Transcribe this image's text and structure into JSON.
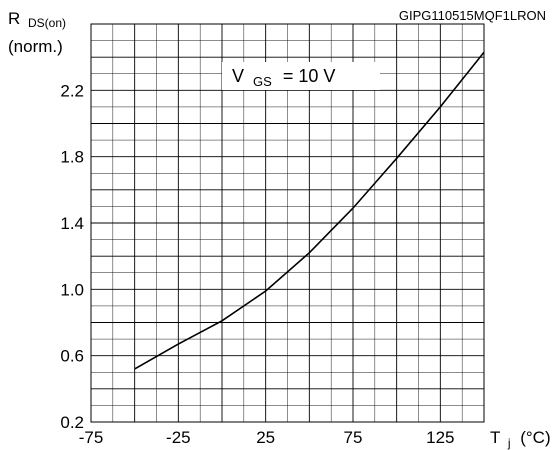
{
  "chart_data": {
    "type": "line",
    "figure_code": "GIPG110515MQF1LRON",
    "ylabel_main": "R",
    "ylabel_sub": "DS(on)",
    "ylabel_unit": "(norm.)",
    "xlabel_main": "T",
    "xlabel_sub": "j",
    "xlabel_unit": "(°C)",
    "annotation_main": "V",
    "annotation_sub": "GS",
    "annotation_rest": "= 10 V",
    "xlim": [
      -75,
      150
    ],
    "ylim": [
      0.2,
      2.6
    ],
    "x_ticks": [
      -75,
      -25,
      25,
      75,
      125
    ],
    "x_tick_labels": [
      "-75",
      "-25",
      "25",
      "75",
      "125"
    ],
    "y_ticks": [
      0.2,
      0.6,
      1.0,
      1.4,
      1.8,
      2.2
    ],
    "y_tick_labels": [
      "0.2",
      "0.6",
      "1.0",
      "1.4",
      "1.8",
      "2.2"
    ],
    "grid": true,
    "series": [
      {
        "x": [
          -50,
          -25,
          0,
          25,
          50,
          75,
          100,
          125,
          150
        ],
        "y": [
          0.52,
          0.67,
          0.81,
          0.99,
          1.22,
          1.49,
          1.79,
          2.1,
          2.43
        ]
      }
    ]
  }
}
